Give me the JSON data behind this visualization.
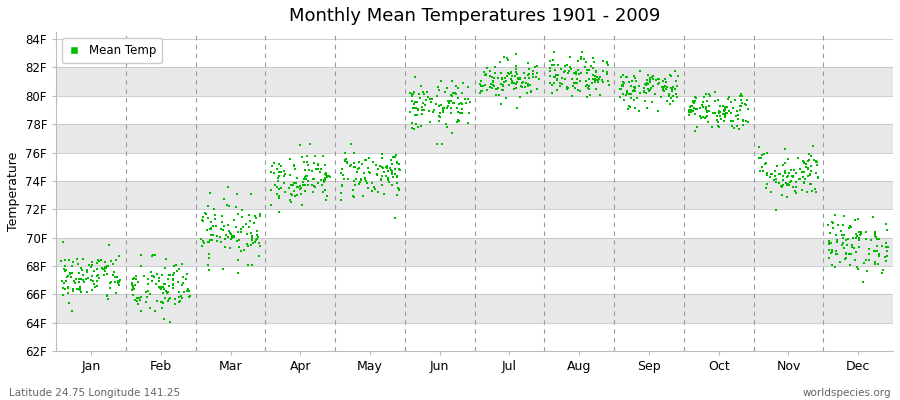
{
  "title": "Monthly Mean Temperatures 1901 - 2009",
  "ylabel": "Temperature",
  "bottom_left": "Latitude 24.75 Longitude 141.25",
  "bottom_right": "worldspecies.org",
  "legend_label": "Mean Temp",
  "dot_color": "#00bb00",
  "bg_color": "#ffffff",
  "band_color": "#e8e8e8",
  "ylim": [
    62,
    84.5
  ],
  "ytick_vals": [
    62,
    64,
    66,
    68,
    70,
    72,
    74,
    76,
    78,
    80,
    82,
    84
  ],
  "ytick_labels": [
    "62F",
    "64F",
    "66F",
    "68F",
    "70F",
    "72F",
    "74F",
    "76F",
    "78F",
    "80F",
    "82F",
    "84F"
  ],
  "months": [
    "Jan",
    "Feb",
    "Mar",
    "Apr",
    "May",
    "Jun",
    "Jul",
    "Aug",
    "Sep",
    "Oct",
    "Nov",
    "Dec"
  ],
  "mean_temps": [
    67.2,
    66.4,
    70.5,
    74.2,
    74.5,
    79.2,
    81.2,
    81.3,
    80.5,
    79.0,
    74.5,
    69.5
  ],
  "temp_spreads": [
    0.9,
    1.1,
    1.1,
    0.9,
    0.9,
    0.9,
    0.7,
    0.7,
    0.7,
    0.7,
    0.9,
    1.0
  ],
  "n_years": 109,
  "seed": 42,
  "figsize": [
    9.0,
    4.0
  ],
  "dpi": 100
}
